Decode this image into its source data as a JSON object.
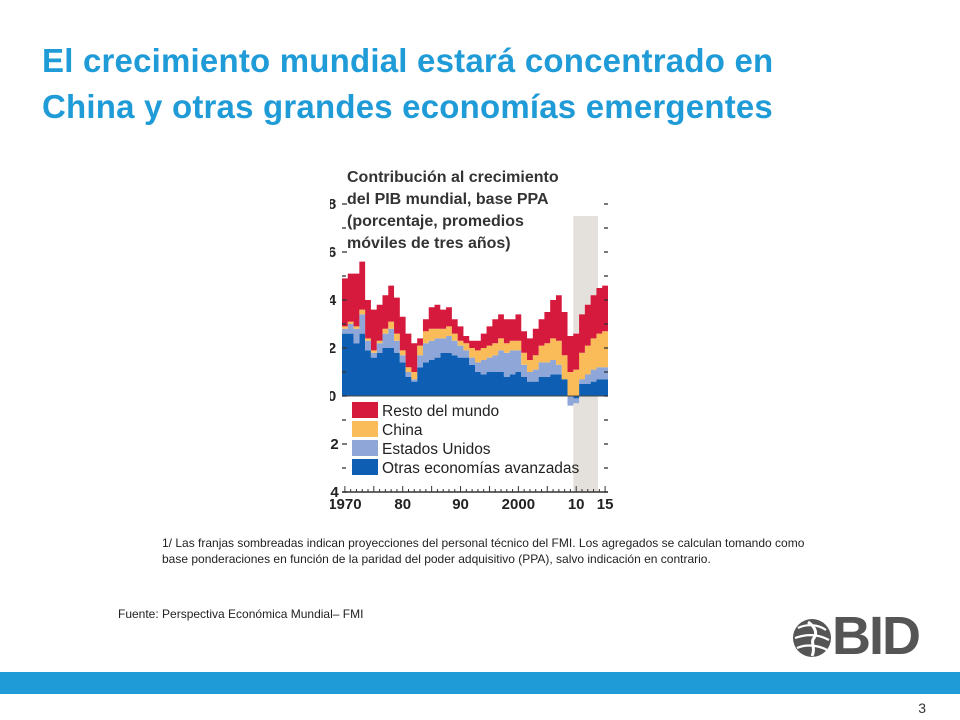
{
  "slide": {
    "title_line1": "El crecimiento mundial estará concentrado en",
    "title_line2": "China y otras grandes economías emergentes",
    "footnote": "1/ Las franjas sombreadas indican proyecciones del personal técnico del FMI. Los agregados se calculan tomando como base ponderaciones en función de la paridad del poder adquisitivo (PPA), salvo indicación en contrario.",
    "source": "Fuente: Perspectiva Económica Mundial– FMI",
    "logo_text": "BID",
    "page_number": "3",
    "accent_color": "#1f9bd7"
  },
  "chart_data": {
    "type": "area",
    "stacked": true,
    "title_lines": [
      "Contribución al crecimiento",
      "del PIB mundial, base PPA",
      "(porcentaje, promedios",
      "móviles de tres años)"
    ],
    "x_tick_labels": [
      "1970",
      "80",
      "90",
      "2000",
      "10",
      "15"
    ],
    "x_tick_values": [
      1970,
      1980,
      1990,
      2000,
      2010,
      2015
    ],
    "y_tick_labels": [
      "-4",
      "-2",
      "0",
      "2",
      "4",
      "6",
      "8"
    ],
    "y_tick_values": [
      -4,
      -2,
      0,
      2,
      4,
      6,
      8
    ],
    "xlim": [
      1969.5,
      2015.5
    ],
    "ylim": [
      -4,
      8
    ],
    "projection_band": [
      2009.5,
      2015.5
    ],
    "projection_color": "#e4e0dc",
    "legend_position": "bottom-left",
    "x": [
      1970,
      1971,
      1972,
      1973,
      1974,
      1975,
      1976,
      1977,
      1978,
      1979,
      1980,
      1981,
      1982,
      1983,
      1984,
      1985,
      1986,
      1987,
      1988,
      1989,
      1990,
      1991,
      1992,
      1993,
      1994,
      1995,
      1996,
      1997,
      1998,
      1999,
      2000,
      2001,
      2002,
      2003,
      2004,
      2005,
      2006,
      2007,
      2008,
      2009,
      2010,
      2011,
      2012,
      2013,
      2014,
      2015
    ],
    "series": [
      {
        "name": "Otras economías avanzadas",
        "color": "#0e5fb3",
        "values": [
          2.6,
          2.6,
          2.2,
          2.6,
          1.9,
          1.6,
          1.8,
          2.0,
          2.0,
          1.8,
          1.4,
          0.8,
          0.6,
          1.2,
          1.4,
          1.5,
          1.6,
          1.8,
          1.8,
          1.7,
          1.6,
          1.6,
          1.3,
          1.0,
          0.9,
          1.0,
          1.0,
          1.0,
          0.8,
          0.9,
          1.0,
          0.8,
          0.6,
          0.6,
          0.8,
          0.8,
          0.9,
          0.9,
          0.7,
          0.0,
          -0.1,
          0.5,
          0.5,
          0.6,
          0.7,
          0.7
        ]
      },
      {
        "name": "Estados Unidos",
        "color": "#8fa6d8",
        "values": [
          0.2,
          0.4,
          0.6,
          0.8,
          0.4,
          0.2,
          0.4,
          0.6,
          0.8,
          0.5,
          0.3,
          0.2,
          0.1,
          0.5,
          0.8,
          0.8,
          0.8,
          0.6,
          0.7,
          0.6,
          0.5,
          0.3,
          0.3,
          0.4,
          0.6,
          0.6,
          0.7,
          0.9,
          1.0,
          1.0,
          0.9,
          0.5,
          0.4,
          0.5,
          0.6,
          0.6,
          0.6,
          0.4,
          0.0,
          -0.4,
          -0.2,
          0.2,
          0.4,
          0.5,
          0.5,
          0.5
        ]
      },
      {
        "name": "China",
        "color": "#f9bc59",
        "values": [
          0.1,
          0.1,
          0.1,
          0.2,
          0.1,
          0.1,
          0.1,
          0.2,
          0.3,
          0.3,
          0.2,
          0.2,
          0.3,
          0.4,
          0.5,
          0.5,
          0.4,
          0.4,
          0.4,
          0.3,
          0.2,
          0.3,
          0.4,
          0.5,
          0.5,
          0.5,
          0.5,
          0.5,
          0.4,
          0.4,
          0.4,
          0.5,
          0.5,
          0.6,
          0.7,
          0.8,
          0.9,
          1.0,
          1.0,
          1.0,
          1.1,
          1.1,
          1.2,
          1.3,
          1.4,
          1.5
        ]
      },
      {
        "name": "Resto del mundo",
        "color": "#d51a3d",
        "values": [
          2.0,
          2.0,
          2.2,
          2.0,
          1.6,
          1.7,
          1.5,
          1.4,
          1.5,
          1.5,
          1.4,
          1.4,
          1.2,
          0.3,
          0.5,
          0.9,
          1.0,
          0.8,
          0.8,
          0.6,
          0.6,
          0.3,
          0.3,
          0.4,
          0.6,
          0.8,
          1.0,
          1.0,
          1.0,
          0.9,
          1.1,
          0.9,
          0.9,
          1.1,
          1.1,
          1.3,
          1.6,
          1.9,
          1.8,
          1.5,
          1.5,
          1.6,
          1.7,
          1.8,
          1.9,
          1.9
        ]
      }
    ]
  }
}
